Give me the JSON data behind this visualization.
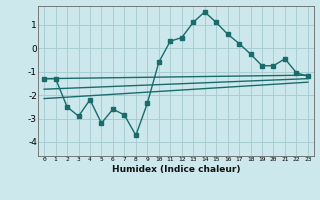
{
  "xlabel": "Humidex (Indice chaleur)",
  "bg_color": "#cce8ec",
  "grid_color": "#aacdd4",
  "line_color": "#1a6b6b",
  "x_ticks": [
    0,
    1,
    2,
    3,
    4,
    5,
    6,
    7,
    8,
    9,
    10,
    11,
    12,
    13,
    14,
    15,
    16,
    17,
    18,
    19,
    20,
    21,
    22,
    23
  ],
  "y_ticks": [
    -4,
    -3,
    -2,
    -1,
    0,
    1
  ],
  "ylim": [
    -4.6,
    1.8
  ],
  "xlim": [
    -0.5,
    23.5
  ],
  "main_curve_x": [
    0,
    1,
    2,
    3,
    4,
    5,
    6,
    7,
    8,
    9,
    10,
    11,
    12,
    13,
    14,
    15,
    16,
    17,
    18,
    19,
    20,
    21,
    22,
    23
  ],
  "main_curve_y": [
    -1.3,
    -1.3,
    -2.5,
    -2.9,
    -2.2,
    -3.2,
    -2.6,
    -2.85,
    -3.72,
    -2.35,
    -0.6,
    0.3,
    0.45,
    1.1,
    1.55,
    1.1,
    0.6,
    0.2,
    -0.25,
    -0.75,
    -0.75,
    -0.45,
    -1.05,
    -1.2
  ],
  "line1_x": [
    0,
    23
  ],
  "line1_y": [
    -1.3,
    -1.15
  ],
  "line2_x": [
    0,
    23
  ],
  "line2_y": [
    -1.75,
    -1.3
  ],
  "line3_x": [
    0,
    23
  ],
  "line3_y": [
    -2.15,
    -1.45
  ]
}
